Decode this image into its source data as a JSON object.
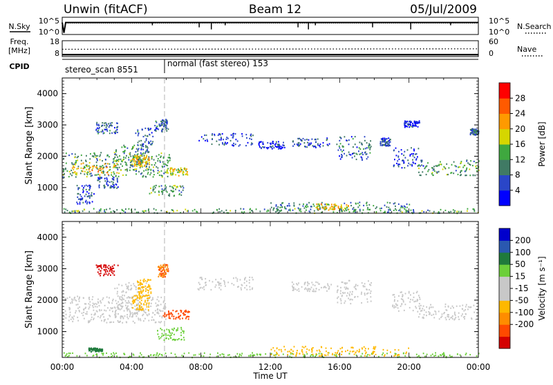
{
  "header": {
    "station": "Unwin (fitACF)",
    "beam": "Beam 12",
    "date": "05/Jul/2009"
  },
  "colors": {
    "power_scale": [
      "#0000ff",
      "#2a46c8",
      "#407a64",
      "#3fa83f",
      "#d6d600",
      "#ff9a00",
      "#ff5a00",
      "#ff0000"
    ],
    "velocity_scale": [
      "#d40000",
      "#ff4a00",
      "#ff8c00",
      "#ffb800",
      "#c8c8c8",
      "#c8c8c8",
      "#6ccf3a",
      "#1f7a3c",
      "#2a58b0",
      "#0000cc"
    ],
    "noise": "#000000"
  },
  "chart_data": [
    {
      "type": "line",
      "name": "noise",
      "left_labels": [
        "N.Sky"
      ],
      "right_labels": [
        "N.Search"
      ],
      "y_ticks_left": [
        "10^5",
        "10^0"
      ],
      "y_ticks_right": [
        "10^5",
        "10^0"
      ],
      "ylim": [
        1,
        100000
      ],
      "scale": "log",
      "series": [
        {
          "style": "solid",
          "values": [
            {
              "x": 0,
              "y": 3000
            },
            {
              "x": 0.1,
              "y": 3
            },
            {
              "x": 0.2,
              "y": 3000
            },
            {
              "x": 24,
              "y": 3000
            }
          ]
        },
        {
          "style": "dotted",
          "values": [
            {
              "x": 0,
              "y": 2000
            },
            {
              "x": 24,
              "y": 2000
            }
          ]
        }
      ]
    },
    {
      "type": "line",
      "name": "frequency",
      "left_labels": [
        "Freq.",
        "[MHz]"
      ],
      "right_labels": [
        "Nave"
      ],
      "y_ticks_left": [
        "18",
        "8"
      ],
      "y_ticks_right": [
        "60",
        "0"
      ],
      "ylim": [
        8,
        18
      ],
      "series": [
        {
          "style": "dotted",
          "values": [
            {
              "x": 0,
              "y": 12.6
            },
            {
              "x": 1,
              "y": 12.6
            },
            {
              "x": 24,
              "y": 12.9
            }
          ]
        },
        {
          "style": "solid",
          "values": [
            {
              "x": 0,
              "y": 9.2
            },
            {
              "x": 24,
              "y": 9.2
            }
          ]
        }
      ]
    },
    {
      "type": "table",
      "name": "cpid",
      "label": "CPID",
      "segments": [
        {
          "label": "stereo_scan 8551",
          "start": 0,
          "end": 5.9
        },
        {
          "label": "normal (fast stereo) 153",
          "start": 5.9,
          "end": 24
        }
      ]
    },
    {
      "type": "heatmap",
      "name": "power",
      "ylabel": "Slant Range [km]",
      "xlim": [
        0,
        24
      ],
      "ylim": [
        180,
        4500
      ],
      "y_ticks": [
        1000,
        2000,
        3000,
        4000
      ],
      "colorbar": {
        "label": "Power [dB]",
        "ticks": [
          4,
          8,
          12,
          16,
          20,
          24,
          28
        ],
        "range": [
          0,
          32
        ]
      },
      "patches": [
        {
          "x": [
            0.0,
            6.2
          ],
          "y": [
            1350,
            2150
          ],
          "value": 12
        },
        {
          "x": [
            0.5,
            3.2
          ],
          "y": [
            1420,
            1800
          ],
          "value": 20
        },
        {
          "x": [
            3.0,
            4.9
          ],
          "y": [
            1550,
            2400
          ],
          "value": 12
        },
        {
          "x": [
            4.0,
            5.0
          ],
          "y": [
            1700,
            2050
          ],
          "value": 20
        },
        {
          "x": [
            4.2,
            5.2
          ],
          "y": [
            2150,
            2950
          ],
          "value": 8
        },
        {
          "x": [
            1.9,
            3.2
          ],
          "y": [
            2750,
            3100
          ],
          "value": 8
        },
        {
          "x": [
            5.3,
            6.1
          ],
          "y": [
            2800,
            3200
          ],
          "value": 8
        },
        {
          "x": [
            0.8,
            1.8
          ],
          "y": [
            500,
            1100
          ],
          "value": 6
        },
        {
          "x": [
            2.0,
            3.2
          ],
          "y": [
            1000,
            1350
          ],
          "value": 6
        },
        {
          "x": [
            5.9,
            7.2
          ],
          "y": [
            1400,
            1650
          ],
          "value": 18
        },
        {
          "x": [
            5.0,
            7.0
          ],
          "y": [
            750,
            1100
          ],
          "value": 12
        },
        {
          "x": [
            7.8,
            11.0
          ],
          "y": [
            2350,
            2750
          ],
          "value": 6
        },
        {
          "x": [
            11.3,
            12.8
          ],
          "y": [
            2250,
            2500
          ],
          "value": 4
        },
        {
          "x": [
            13.2,
            15.5
          ],
          "y": [
            2300,
            2600
          ],
          "value": 6
        },
        {
          "x": [
            15.8,
            17.8
          ],
          "y": [
            1900,
            2650
          ],
          "value": 8
        },
        {
          "x": [
            18.3,
            18.9
          ],
          "y": [
            2350,
            2600
          ],
          "value": 6
        },
        {
          "x": [
            19.0,
            20.8
          ],
          "y": [
            1650,
            2300
          ],
          "value": 6
        },
        {
          "x": [
            20.5,
            24.0
          ],
          "y": [
            1400,
            1900
          ],
          "value": 12
        },
        {
          "x": [
            19.7,
            20.6
          ],
          "y": [
            2950,
            3150
          ],
          "value": 4
        },
        {
          "x": [
            23.5,
            24.0
          ],
          "y": [
            2700,
            2900
          ],
          "value": 8
        },
        {
          "x": [
            0.0,
            24.0
          ],
          "y": [
            200,
            350
          ],
          "value": 12
        },
        {
          "x": [
            12.0,
            20.0
          ],
          "y": [
            250,
            550
          ],
          "value": 10
        },
        {
          "x": [
            14.6,
            16.5
          ],
          "y": [
            300,
            500
          ],
          "value": 20
        }
      ]
    },
    {
      "type": "heatmap",
      "name": "velocity",
      "ylabel": "Slant Range [km]",
      "xlabel": "Time UT",
      "xlim": [
        0,
        24
      ],
      "ylim": [
        180,
        4500
      ],
      "y_ticks": [
        1000,
        2000,
        3000,
        4000
      ],
      "x_ticks": [
        "00:00",
        "04:00",
        "08:00",
        "12:00",
        "16:00",
        "20:00",
        "00:00"
      ],
      "colorbar": {
        "label": "Velocity [m s⁻¹]",
        "ticks": [
          200,
          100,
          50,
          15,
          -15,
          -50,
          -100,
          -200
        ],
        "range": [
          -250,
          250
        ]
      },
      "patches": [
        {
          "x": [
            0.0,
            6.0
          ],
          "y": [
            1300,
            2150
          ],
          "value": 0
        },
        {
          "x": [
            3.0,
            4.9
          ],
          "y": [
            1450,
            2600
          ],
          "value": -10
        },
        {
          "x": [
            4.0,
            5.0
          ],
          "y": [
            1700,
            2200
          ],
          "value": -40
        },
        {
          "x": [
            4.3,
            5.1
          ],
          "y": [
            2150,
            2700
          ],
          "value": -20
        },
        {
          "x": [
            1.9,
            3.2
          ],
          "y": [
            2800,
            3150
          ],
          "value": -220
        },
        {
          "x": [
            5.5,
            6.1
          ],
          "y": [
            2750,
            3150
          ],
          "value": -100
        },
        {
          "x": [
            5.8,
            7.3
          ],
          "y": [
            1420,
            1700
          ],
          "value": -140
        },
        {
          "x": [
            5.4,
            7.0
          ],
          "y": [
            750,
            1150
          ],
          "value": 40
        },
        {
          "x": [
            1.5,
            2.3
          ],
          "y": [
            380,
            500
          ],
          "value": 60
        },
        {
          "x": [
            7.8,
            11.0
          ],
          "y": [
            2350,
            2750
          ],
          "value": 0
        },
        {
          "x": [
            13.2,
            15.5
          ],
          "y": [
            2300,
            2600
          ],
          "value": 0
        },
        {
          "x": [
            15.8,
            17.8
          ],
          "y": [
            1900,
            2650
          ],
          "value": 0
        },
        {
          "x": [
            19.0,
            20.8
          ],
          "y": [
            1650,
            2300
          ],
          "value": 0
        },
        {
          "x": [
            20.5,
            24.0
          ],
          "y": [
            1400,
            1900
          ],
          "value": 0
        },
        {
          "x": [
            0.0,
            24.0
          ],
          "y": [
            200,
            350
          ],
          "value": 30
        },
        {
          "x": [
            12.0,
            20.0
          ],
          "y": [
            250,
            550
          ],
          "value": -20
        }
      ]
    }
  ]
}
